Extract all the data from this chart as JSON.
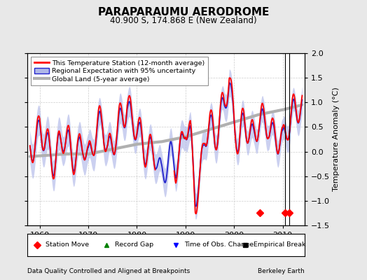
{
  "title": "PARAPARAUMU AERODROME",
  "subtitle": "40.900 S, 174.868 E (New Zealand)",
  "ylabel": "Temperature Anomaly (°C)",
  "xlabel_left": "Data Quality Controlled and Aligned at Breakpoints",
  "xlabel_right": "Berkeley Earth",
  "ylim": [
    -1.5,
    2.0
  ],
  "xlim": [
    1957.5,
    2014.5
  ],
  "yticks": [
    -1.5,
    -1.0,
    -0.5,
    0.0,
    0.5,
    1.0,
    1.5,
    2.0
  ],
  "xticks": [
    1960,
    1970,
    1980,
    1990,
    2000,
    2010
  ],
  "bg_color": "#e8e8e8",
  "plot_bg_color": "#ffffff",
  "legend_entries": [
    "This Temperature Station (12-month average)",
    "Regional Expectation with 95% uncertainty",
    "Global Land (5-year average)"
  ],
  "station_move_years": [
    2005.3,
    2010.5,
    2011.3
  ],
  "vline_years": [
    2010.5,
    2011.3
  ],
  "grid_color": "#cccccc",
  "station_color": "#ff0000",
  "regional_color": "#2222cc",
  "regional_fill_color": "#b0b8e8",
  "global_color": "#b0b0b0",
  "global_linewidth": 3.0,
  "station_linewidth": 1.3,
  "regional_linewidth": 1.3
}
